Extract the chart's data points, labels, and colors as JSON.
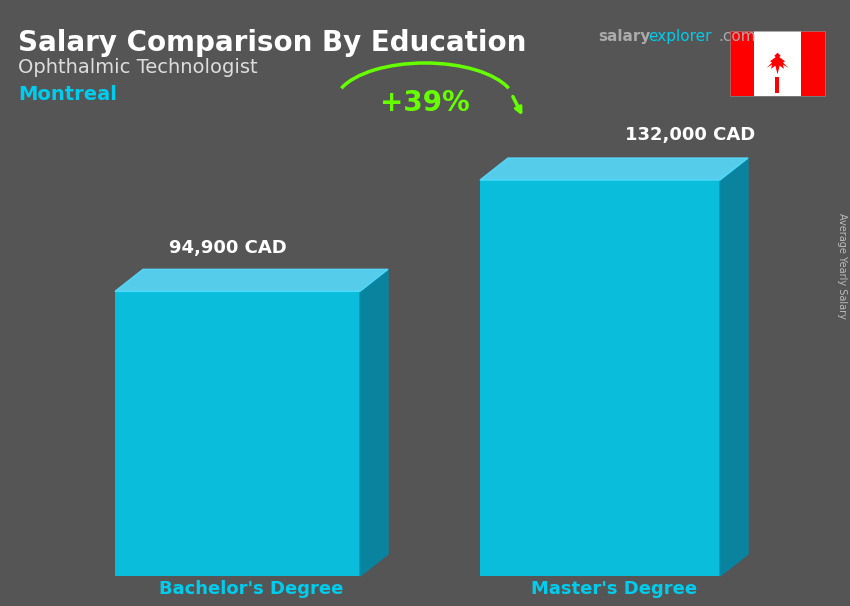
{
  "title_main": "Salary Comparison By Education",
  "title_sub": "Ophthalmic Technologist",
  "title_city": "Montreal",
  "site_salary": "salary",
  "site_explorer": "explorer",
  "site_com": ".com",
  "categories": [
    "Bachelor's Degree",
    "Master's Degree"
  ],
  "values": [
    94900,
    132000
  ],
  "value_labels": [
    "94,900 CAD",
    "132,000 CAD"
  ],
  "pct_change": "+39%",
  "bar_front_color": "#00ccee",
  "bar_side_color": "#008aaa",
  "bar_top_color": "#55ddff",
  "background_color": "#555555",
  "title_color": "#ffffff",
  "subtitle_color": "#dddddd",
  "city_color": "#00ccee",
  "value_label_color": "#ffffff",
  "xlabel_color": "#00ccee",
  "pct_color": "#66ff00",
  "site_color_salary": "#aaaaaa",
  "site_color_explorer": "#00ccee",
  "site_color_com": "#aaaaaa",
  "ylabel_text": "Average Yearly Salary",
  "fig_width": 8.5,
  "fig_height": 6.06,
  "dpi": 100
}
